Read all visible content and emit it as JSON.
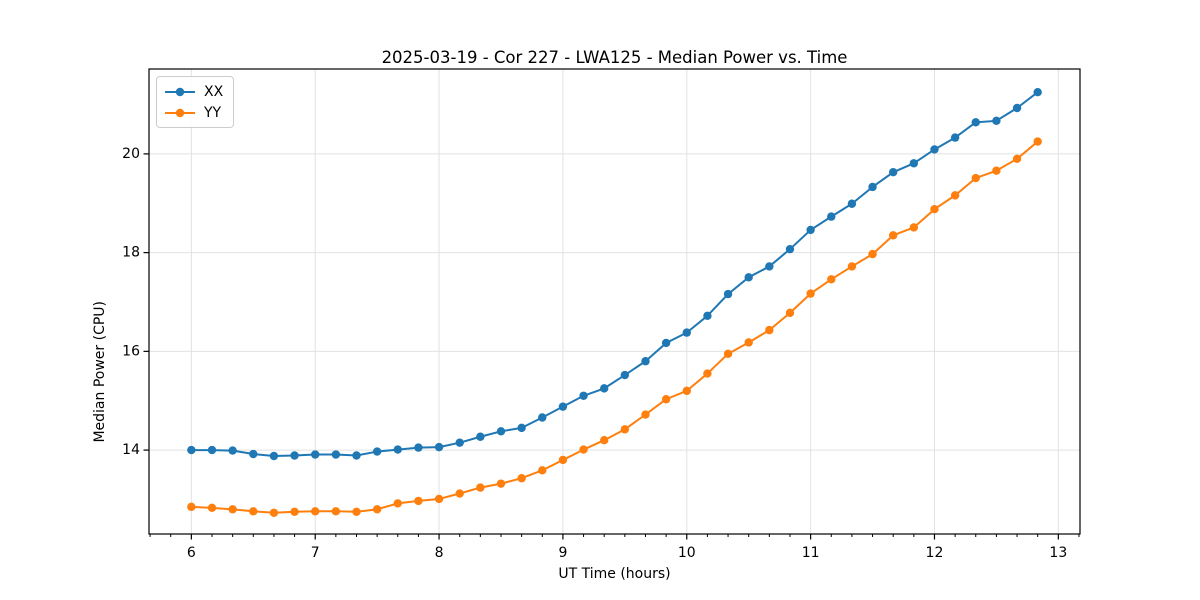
{
  "chart_data": {
    "type": "line",
    "title": "2025-03-19 - Cor 227 - LWA125 - Median Power vs. Time",
    "xlabel": "UT Time (hours)",
    "ylabel": "Median Power (CPU)",
    "xlim": [
      5.658,
      13.175
    ],
    "ylim": [
      12.3,
      21.72
    ],
    "x_major_ticks": [
      6,
      7,
      8,
      9,
      10,
      11,
      12,
      13
    ],
    "y_major_ticks": [
      14,
      16,
      18,
      20
    ],
    "x_minor_tick_step": 0.166667,
    "grid": true,
    "legend_position": "upper left",
    "grid_color": "#e2e2e2",
    "spine_color": "#000000",
    "x": [
      6.0,
      6.1667,
      6.3333,
      6.5,
      6.6667,
      6.8333,
      7.0,
      7.1667,
      7.3333,
      7.5,
      7.6667,
      7.8333,
      8.0,
      8.1667,
      8.3333,
      8.5,
      8.6667,
      8.8333,
      9.0,
      9.1667,
      9.3333,
      9.5,
      9.6667,
      9.8333,
      10.0,
      10.1667,
      10.3333,
      10.5,
      10.6667,
      10.8333,
      11.0,
      11.1667,
      11.3333,
      11.5,
      11.6667,
      11.8333,
      12.0,
      12.1667,
      12.3333,
      12.5,
      12.6667,
      12.8333
    ],
    "series": [
      {
        "name": "XX",
        "color": "#1f77b4",
        "values": [
          14.0,
          14.0,
          13.99,
          13.92,
          13.88,
          13.89,
          13.91,
          13.91,
          13.89,
          13.97,
          14.01,
          14.05,
          14.06,
          14.15,
          14.27,
          14.38,
          14.45,
          14.66,
          14.88,
          15.1,
          15.25,
          15.52,
          15.8,
          16.17,
          16.38,
          16.72,
          17.16,
          17.5,
          17.72,
          18.07,
          18.46,
          18.73,
          18.99,
          19.33,
          19.63,
          19.81,
          20.09,
          20.33,
          20.64,
          20.67,
          20.93,
          21.25
        ]
      },
      {
        "name": "YY",
        "color": "#ff7f0e",
        "values": [
          12.85,
          12.83,
          12.8,
          12.76,
          12.73,
          12.75,
          12.76,
          12.76,
          12.75,
          12.8,
          12.92,
          12.97,
          13.01,
          13.12,
          13.24,
          13.32,
          13.43,
          13.59,
          13.8,
          14.01,
          14.2,
          14.42,
          14.72,
          15.03,
          15.2,
          15.55,
          15.95,
          16.18,
          16.43,
          16.78,
          17.17,
          17.46,
          17.72,
          17.97,
          18.35,
          18.51,
          18.88,
          19.16,
          19.51,
          19.66,
          19.9,
          20.25
        ]
      }
    ]
  }
}
